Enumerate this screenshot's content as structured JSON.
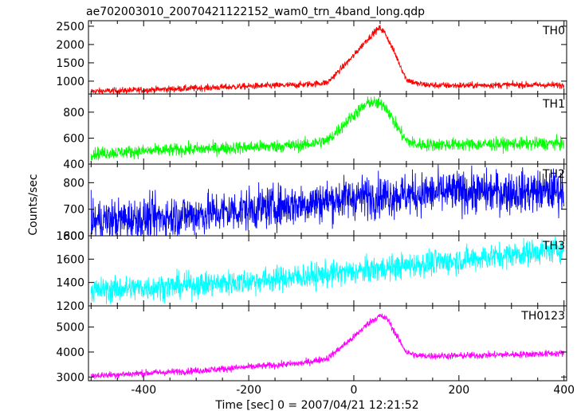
{
  "chart_data": {
    "type": "line",
    "title": "ae702003010_20070421122152_wam0_trn_4band_long.qdp",
    "xlabel": "Time [sec] 0 = 2007/04/21 12:21:52",
    "ylabel": "Counts/sec",
    "xlim": [
      -505,
      405
    ],
    "x_ticks": [
      -400,
      -200,
      0,
      200,
      400
    ],
    "grid": false,
    "panels": [
      {
        "name": "TH0",
        "color": "#ff0000",
        "ylim": [
          650,
          2650
        ],
        "yticks": [
          1000,
          1500,
          2000,
          2500
        ],
        "noise": 45,
        "x": [
          -500,
          -400,
          -300,
          -200,
          -100,
          -50,
          0,
          20,
          40,
          50,
          60,
          80,
          100,
          120,
          150,
          200,
          300,
          400
        ],
        "y": [
          720,
          760,
          810,
          860,
          900,
          960,
          1700,
          2050,
          2350,
          2450,
          2300,
          1700,
          1050,
          930,
          890,
          880,
          900,
          890
        ]
      },
      {
        "name": "TH1",
        "color": "#00ff00",
        "ylim": [
          400,
          940
        ],
        "yticks": [
          400,
          600,
          800
        ],
        "noise": 25,
        "x": [
          -500,
          -400,
          -300,
          -200,
          -100,
          -50,
          0,
          30,
          60,
          80,
          100,
          120,
          200,
          300,
          400
        ],
        "y": [
          480,
          500,
          515,
          530,
          545,
          580,
          780,
          880,
          850,
          700,
          580,
          550,
          550,
          555,
          560
        ],
        "spike": [
          0,
          80,
          0.15
        ]
      },
      {
        "name": "TH2",
        "color": "#0000ff",
        "ylim": [
          600,
          870
        ],
        "yticks": [
          600,
          700,
          800
        ],
        "noise": 40,
        "x": [
          -500,
          -400,
          -300,
          -200,
          -100,
          0,
          100,
          200,
          300,
          400
        ],
        "y": [
          655,
          665,
          680,
          700,
          720,
          745,
          755,
          765,
          765,
          770
        ]
      },
      {
        "name": "TH3",
        "color": "#00ffff",
        "ylim": [
          1200,
          1800
        ],
        "yticks": [
          1200,
          1400,
          1600,
          1800
        ],
        "noise": 55,
        "x": [
          -500,
          -400,
          -300,
          -200,
          -100,
          0,
          100,
          200,
          300,
          400
        ],
        "y": [
          1330,
          1355,
          1380,
          1410,
          1450,
          1490,
          1545,
          1590,
          1640,
          1690
        ]
      },
      {
        "name": "TH0123",
        "color": "#ff00ff",
        "ylim": [
          2850,
          5850
        ],
        "yticks": [
          3000,
          4000,
          5000
        ],
        "noise": 70,
        "x": [
          -500,
          -400,
          -300,
          -200,
          -100,
          -50,
          0,
          30,
          50,
          65,
          80,
          100,
          120,
          150,
          200,
          300,
          400
        ],
        "y": [
          3050,
          3150,
          3250,
          3400,
          3550,
          3750,
          4600,
          5200,
          5450,
          5300,
          4700,
          4000,
          3850,
          3850,
          3850,
          3900,
          3950
        ]
      }
    ]
  }
}
